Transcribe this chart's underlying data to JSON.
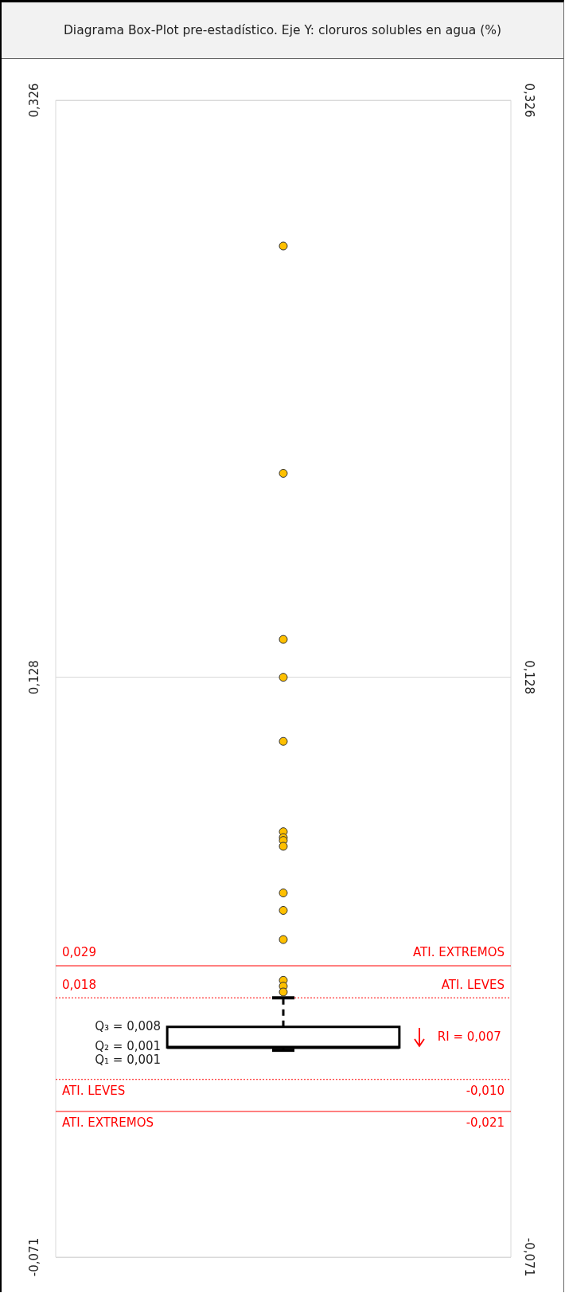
{
  "chart_data": {
    "type": "box",
    "title": "Diagrama Box-Plot pre-estadístico. Eje Y: cloruros solubles en agua (%)",
    "categories": [
      null
    ],
    "series": [
      {
        "type": "box",
        "color": "#ffffff",
        "boxes": [
          {
            "low": 0.0,
            "q1": 0.001,
            "median": 0.001,
            "q3": 0.008,
            "high": 0.018
          }
        ]
      },
      {
        "type": "scatter",
        "color": "#ffc000",
        "x": [
          null,
          null,
          null,
          null,
          null,
          null,
          null,
          null,
          null,
          null,
          null,
          null,
          null,
          null,
          null
        ],
        "values": [
          0.276,
          0.198,
          0.141,
          0.128,
          0.106,
          0.075,
          0.073,
          0.072,
          0.07,
          0.054,
          0.048,
          0.038,
          0.024,
          0.022,
          0.02
        ]
      }
    ],
    "ylim": [
      -0.071,
      0.326
    ],
    "yticks": [
      {
        "value": -0.071,
        "label": "-0,071"
      },
      {
        "value": 0.128,
        "label": "0,128"
      },
      {
        "value": 0.326,
        "label": "0,326"
      }
    ],
    "y2lim": [
      -0.071,
      0.326
    ],
    "y2ticks": [
      {
        "value": -0.071,
        "label": "-0,071"
      },
      {
        "value": 0.128,
        "label": "0,128"
      },
      {
        "value": 0.326,
        "label": "0,326"
      }
    ],
    "grid": "y",
    "ref_lines": [
      {
        "axis": "y",
        "value": 0.029,
        "label": "ATI. EXTREMOS",
        "color": "#ff0000",
        "line_style": "solid"
      },
      {
        "axis": "y",
        "value": 0.018,
        "label": "ATI. LEVES",
        "color": "#ff0000",
        "line_style": "dotted"
      },
      {
        "axis": "y",
        "value": -0.01,
        "label": "ATI. LEVES",
        "color": "#ff0000",
        "line_style": "dotted"
      },
      {
        "axis": "y",
        "value": -0.021,
        "label": "ATI. EXTREMOS",
        "color": "#ff0000",
        "line_style": "solid"
      }
    ],
    "annotations": [
      "Q₃ = 0,008",
      "Q₂ = 0,001",
      "Q₁ = 0,001",
      "RI = 0,007",
      "0,029",
      "0,018",
      "-0,010",
      "-0,021"
    ]
  }
}
